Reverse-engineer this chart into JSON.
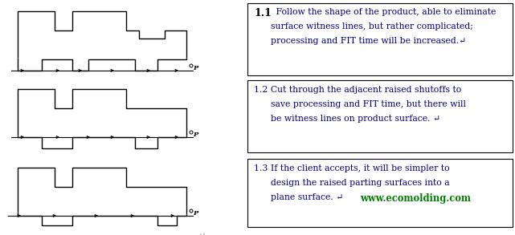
{
  "bg_color": "#ffffff",
  "text_color": "#000000",
  "blue_text": "#00008B",
  "green_color": "#008000",
  "line_color": "#000000",
  "box1_bold": "1.1",
  "box1_line1": " Follow the shape of the product, able to eliminate",
  "box1_line2": "surface witness lines, but rather complicated;",
  "box1_line3": "processing and FIT time will be increased.",
  "box2_line1": "1.2 Cut through the adjacent raised shutoffs to",
  "box2_line2": "save processing and FIT time, but there will",
  "box2_line3": "be witness lines on product surface. ",
  "box3_line1": "1.3 If the client accepts, it will be simpler to",
  "box3_line2": "design the raised parting surfaces into a",
  "box3_line3": "plane surface. ",
  "box3_web": "www.ecomolding.com"
}
